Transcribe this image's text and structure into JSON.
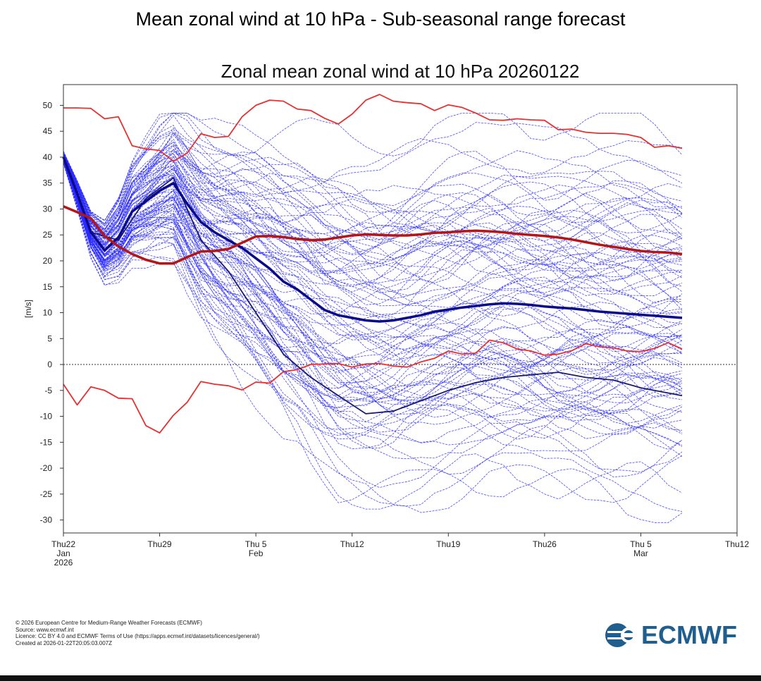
{
  "page": {
    "title": "Mean zonal wind at 10 hPa - Sub-seasonal range forecast"
  },
  "footer": {
    "line1": "© 2026 European Centre for Medium-Range Weather Forecasts (ECMWF)",
    "line2": "Source: www.ecmwf.int",
    "line3": "Licence: CC BY 4.0 and ECMWF Terms of Use (https://apps.ecmwf.int/datasets/licences/general/)",
    "line4": "Created at 2026-01-22T20:05:03.007Z"
  },
  "logo": {
    "text": "ECMWF",
    "icon": "ecmwf-logo-icon",
    "color": "#1f5f8f"
  },
  "chart_data": {
    "type": "line",
    "title": "Zonal mean zonal wind at 10 hPa 20260122",
    "ylabel": "[m/s]",
    "xlabel": "",
    "x_unit": "days",
    "xlim": [
      0,
      49
    ],
    "ylim": [
      -32.5,
      54
    ],
    "yticks": [
      50,
      45,
      40,
      35,
      30,
      25,
      20,
      15,
      10,
      5,
      0,
      -5,
      -10,
      -15,
      -20,
      -25,
      -30
    ],
    "xticks": [
      {
        "x": 0,
        "lines": [
          "Thu22",
          "Jan",
          "2026"
        ]
      },
      {
        "x": 7,
        "lines": [
          "Thu29"
        ]
      },
      {
        "x": 14,
        "lines": [
          "Thu 5",
          "Feb"
        ]
      },
      {
        "x": 21,
        "lines": [
          "Thu12"
        ]
      },
      {
        "x": 28,
        "lines": [
          "Thu19"
        ]
      },
      {
        "x": 35,
        "lines": [
          "Thu26"
        ]
      },
      {
        "x": 42,
        "lines": [
          "Thu 5",
          "Mar"
        ]
      },
      {
        "x": 49,
        "lines": [
          "Thu12"
        ]
      }
    ],
    "zero_line": true,
    "ensemble_members": 101,
    "colors": {
      "ensemble": "#2a2aff",
      "ensemble_mean": "#0b0b8a",
      "control": "#1b1b6e",
      "climatology_mean": "#b31616",
      "climatology_extremes": "#e83030"
    },
    "series": [
      {
        "role": "climatology_max",
        "x": [
          0,
          1,
          2,
          3,
          4,
          5,
          6,
          7,
          8,
          9,
          10,
          11,
          12,
          13,
          14,
          15,
          16,
          17,
          18,
          19,
          20,
          21,
          22,
          23,
          24,
          25,
          26,
          27,
          28,
          29,
          30,
          31,
          32,
          33,
          34,
          35,
          36,
          37,
          38,
          39,
          40,
          41,
          42,
          43,
          44,
          45
        ],
        "values": [
          49.5,
          49.5,
          49.4,
          47.4,
          47.8,
          42.2,
          41.6,
          41.3,
          39.2,
          40.8,
          44.5,
          43.8,
          44.0,
          47.8,
          50.0,
          51.0,
          50.8,
          49.3,
          49.0,
          47.5,
          46.4,
          48.3,
          51.0,
          52.1,
          50.8,
          50.5,
          50.3,
          49.0,
          50.1,
          49.6,
          48.5,
          47.2,
          47.1,
          47.4,
          47.2,
          47.1,
          45.3,
          45.4,
          44.8,
          44.6,
          44.6,
          44.4,
          43.8,
          41.9,
          42.2,
          41.7
        ]
      },
      {
        "role": "climatology_min",
        "x": [
          0,
          1,
          2,
          3,
          4,
          5,
          6,
          7,
          8,
          9,
          10,
          11,
          12,
          13,
          14,
          15,
          16,
          17,
          18,
          19,
          20,
          21,
          22,
          23,
          24,
          25,
          26,
          27,
          28,
          29,
          30,
          31,
          32,
          33,
          34,
          35,
          36,
          37,
          38,
          39,
          40,
          41,
          42,
          43,
          44,
          45
        ],
        "values": [
          -3.8,
          -7.8,
          -4.3,
          -5.0,
          -6.5,
          -6.6,
          -11.8,
          -13.2,
          -9.8,
          -7.3,
          -3.3,
          -3.8,
          -4.1,
          -4.9,
          -3.4,
          -3.6,
          -1.4,
          -1.0,
          0.0,
          0.1,
          0.2,
          -0.5,
          0.1,
          0.2,
          -0.3,
          -0.5,
          0.5,
          1.2,
          2.6,
          2.0,
          2.2,
          4.7,
          4.2,
          3.0,
          2.6,
          1.8,
          2.0,
          2.7,
          4.0,
          3.4,
          3.2,
          2.6,
          2.5,
          3.1,
          4.2,
          3.0
        ]
      },
      {
        "role": "climatology_mean",
        "x": [
          0,
          1,
          2,
          3,
          4,
          5,
          6,
          7,
          8,
          9,
          10,
          11,
          12,
          13,
          14,
          15,
          16,
          17,
          18,
          19,
          20,
          21,
          22,
          23,
          24,
          25,
          26,
          27,
          28,
          29,
          30,
          31,
          32,
          33,
          34,
          35,
          36,
          37,
          38,
          39,
          40,
          41,
          42,
          43,
          44,
          45
        ],
        "values": [
          30.5,
          29.4,
          28.2,
          24.8,
          22.8,
          21.3,
          20.2,
          19.5,
          19.5,
          20.7,
          21.8,
          21.9,
          22.3,
          23.5,
          24.7,
          24.8,
          24.6,
          24.2,
          24.0,
          24.1,
          24.5,
          24.9,
          25.1,
          25.0,
          24.9,
          24.9,
          25.1,
          25.4,
          25.5,
          25.7,
          25.8,
          25.7,
          25.5,
          25.2,
          25.0,
          24.8,
          24.5,
          24.1,
          23.6,
          23.1,
          22.7,
          22.3,
          21.9,
          21.7,
          21.6,
          21.3
        ]
      },
      {
        "role": "ensemble_mean",
        "x": [
          0,
          1,
          2,
          3,
          4,
          5,
          6,
          7,
          8,
          9,
          10,
          11,
          12,
          13,
          14,
          15,
          16,
          17,
          18,
          19,
          20,
          21,
          22,
          23,
          24,
          25,
          26,
          27,
          28,
          29,
          30,
          31,
          32,
          33,
          34,
          35,
          36,
          37,
          38,
          39,
          40,
          41,
          42,
          43,
          44,
          45
        ],
        "values": [
          40.0,
          33.0,
          25.5,
          22.0,
          24.5,
          29.5,
          31.5,
          33.5,
          35.0,
          31.0,
          27.5,
          25.5,
          24.0,
          22.5,
          20.5,
          18.5,
          16.0,
          14.5,
          12.5,
          10.5,
          9.5,
          9.0,
          8.5,
          8.3,
          8.5,
          9.0,
          9.5,
          10.2,
          10.6,
          11.0,
          11.3,
          11.6,
          11.8,
          11.7,
          11.5,
          11.2,
          11.0,
          10.8,
          10.5,
          10.2,
          10.0,
          9.8,
          9.6,
          9.4,
          9.2,
          9.0
        ]
      },
      {
        "role": "control",
        "x": [
          0,
          2,
          4,
          6,
          8,
          10,
          12,
          14,
          16,
          18,
          20,
          22,
          24,
          26,
          28,
          30,
          32,
          34,
          36,
          38,
          40,
          42,
          44,
          45
        ],
        "values": [
          40.0,
          25.5,
          24.0,
          32.0,
          36.0,
          24.0,
          18.0,
          10.0,
          2.0,
          -2.5,
          -6.0,
          -9.5,
          -9.0,
          -7.0,
          -5.0,
          -3.5,
          -2.5,
          -2.0,
          -1.5,
          -2.5,
          -3.0,
          -4.5,
          -5.5,
          -6.0
        ]
      }
    ]
  }
}
